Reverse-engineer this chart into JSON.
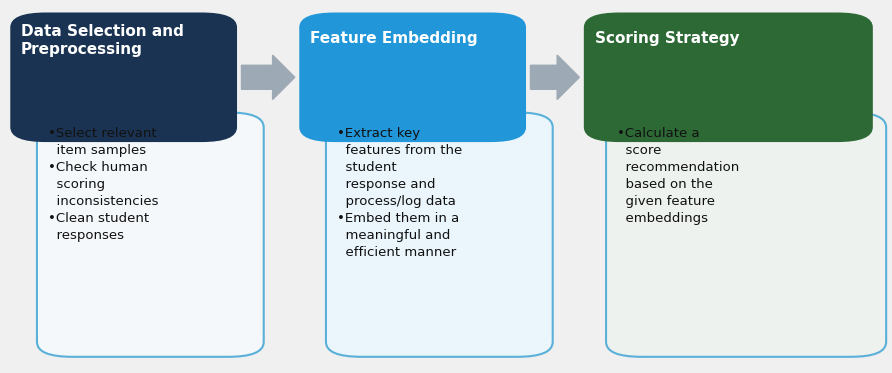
{
  "fig_bg": "#f0f0f0",
  "header1_color": "#1a3352",
  "header2_color": "#2196d9",
  "header3_color": "#2d6935",
  "body1_color": "#f5f8fa",
  "body2_color": "#eaf5fc",
  "body3_color": "#eef2ee",
  "body_border_color": "#5ab0d8",
  "arrow_color": "#9daab5",
  "header_text_color": "#ffffff",
  "body_text_color": "#111111",
  "header1_text": "Data Selection and\nPreprocessing",
  "header2_text": "Feature Embedding",
  "header3_text": "Scoring Strategy",
  "body1_text": "•Select relevant\n  item samples\n•Check human\n  scoring\n  inconsistencies\n•Clean student\n  responses",
  "body2_text": "•Extract key\n  features from the\n  student\n  response and\n  process/log data\n•Embed them in a\n  meaningful and\n  efficient manner",
  "body3_text": "•Calculate a\n  score\n  recommendation\n  based on the\n  given feature\n  embeddings",
  "header_fontsize": 11,
  "body_fontsize": 9.5
}
